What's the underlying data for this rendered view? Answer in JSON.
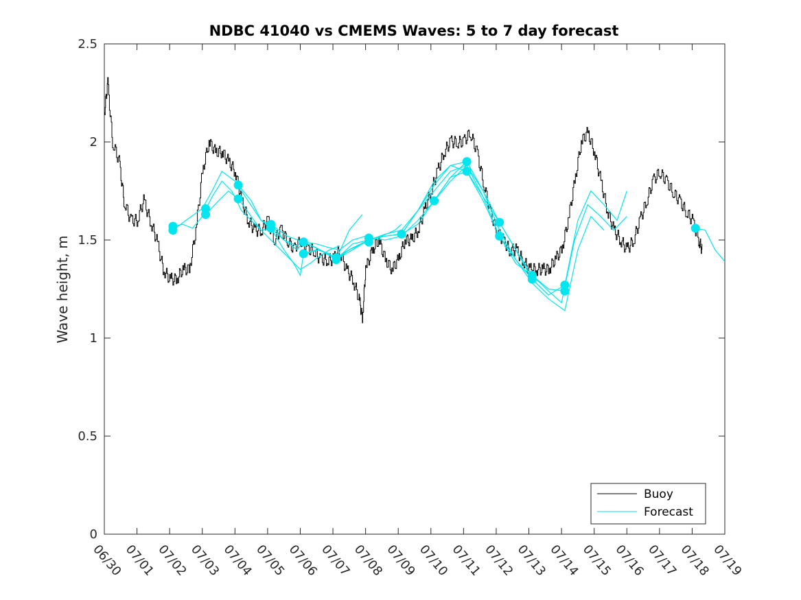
{
  "chart_data": {
    "type": "line",
    "title": "NDBC 41040 vs CMEMS Waves: 5 to 7 day forecast",
    "xlabel": "",
    "ylabel": "Wave height, m",
    "x_tick_labels": [
      "06/30",
      "07/01",
      "07/02",
      "07/03",
      "07/04",
      "07/05",
      "07/06",
      "07/07",
      "07/08",
      "07/09",
      "07/10",
      "07/11",
      "07/12",
      "07/13",
      "07/14",
      "07/15",
      "07/16",
      "07/17",
      "07/18",
      "07/19"
    ],
    "y_ticks": [
      0,
      0.5,
      1,
      1.5,
      2,
      2.5
    ],
    "y_tick_labels": [
      "0",
      "0.5",
      "1",
      "1.5",
      "2",
      "2.5"
    ],
    "xlim_days": [
      0,
      19
    ],
    "ylim": [
      0,
      2.5
    ],
    "grid": false,
    "legend_position": "bottom-right",
    "colors": {
      "buoy": "#000000",
      "forecast": "#00e5ee",
      "axes": "#262626"
    },
    "legend": [
      {
        "name": "Buoy",
        "color": "#000000"
      },
      {
        "name": "Forecast",
        "color": "#00e5ee"
      }
    ],
    "buoy": {
      "name": "Buoy",
      "days": [
        0.0,
        0.1,
        0.25,
        0.45,
        0.6,
        0.8,
        1.0,
        1.2,
        1.4,
        1.6,
        1.8,
        2.0,
        2.2,
        2.4,
        2.6,
        2.8,
        3.0,
        3.2,
        3.4,
        3.6,
        3.8,
        4.0,
        4.2,
        4.4,
        4.6,
        4.8,
        5.0,
        5.2,
        5.4,
        5.6,
        5.8,
        6.0,
        6.2,
        6.4,
        6.6,
        6.8,
        7.0,
        7.2,
        7.4,
        7.6,
        7.8,
        7.9,
        8.0,
        8.2,
        8.4,
        8.6,
        8.8,
        9.0,
        9.2,
        9.4,
        9.6,
        9.8,
        10.0,
        10.2,
        10.4,
        10.6,
        10.8,
        11.0,
        11.2,
        11.4,
        11.6,
        11.8,
        12.0,
        12.2,
        12.4,
        12.6,
        12.8,
        13.0,
        13.2,
        13.4,
        13.6,
        13.8,
        14.0,
        14.2,
        14.4,
        14.6,
        14.8,
        15.0,
        15.2,
        15.4,
        15.6,
        15.8,
        16.0,
        16.2,
        16.4,
        16.6,
        16.8,
        17.0,
        17.2,
        17.4,
        17.6,
        17.8,
        18.0,
        18.2,
        18.3
      ],
      "values": [
        2.15,
        2.3,
        2.0,
        1.9,
        1.7,
        1.6,
        1.6,
        1.7,
        1.6,
        1.5,
        1.35,
        1.3,
        1.3,
        1.35,
        1.35,
        1.55,
        1.85,
        2.0,
        1.95,
        1.95,
        1.9,
        1.85,
        1.7,
        1.6,
        1.55,
        1.55,
        1.6,
        1.5,
        1.55,
        1.5,
        1.45,
        1.5,
        1.45,
        1.45,
        1.4,
        1.4,
        1.4,
        1.45,
        1.35,
        1.3,
        1.2,
        1.1,
        1.35,
        1.45,
        1.5,
        1.4,
        1.35,
        1.4,
        1.5,
        1.5,
        1.55,
        1.65,
        1.75,
        1.85,
        1.95,
        2.0,
        2.0,
        2.0,
        2.05,
        1.95,
        1.8,
        1.65,
        1.55,
        1.5,
        1.45,
        1.45,
        1.4,
        1.35,
        1.35,
        1.35,
        1.35,
        1.4,
        1.45,
        1.6,
        1.8,
        2.0,
        2.05,
        1.95,
        1.8,
        1.65,
        1.55,
        1.5,
        1.45,
        1.5,
        1.6,
        1.7,
        1.8,
        1.85,
        1.8,
        1.75,
        1.7,
        1.65,
        1.6,
        1.5,
        1.45
      ]
    },
    "forecast_runs": [
      {
        "days": [
          2.1,
          2.4,
          2.7,
          3.0,
          3.3,
          3.6,
          3.9,
          4.2,
          4.5,
          4.8,
          5.1,
          5.4,
          5.7,
          6.0,
          6.3,
          6.6,
          6.9,
          7.2
        ],
        "values": [
          1.57,
          1.58,
          1.56,
          1.62,
          1.72,
          1.8,
          1.75,
          1.65,
          1.6,
          1.55,
          1.5,
          1.45,
          1.4,
          1.35,
          1.38,
          1.42,
          1.45,
          1.47
        ]
      },
      {
        "days": [
          2.1,
          2.5,
          3.0,
          3.3,
          3.6,
          4.0,
          4.4,
          4.8,
          5.1,
          5.5,
          5.9,
          6.1,
          6.5,
          6.9,
          7.2,
          7.6,
          8.0
        ],
        "values": [
          1.55,
          1.6,
          1.66,
          1.75,
          1.85,
          1.8,
          1.7,
          1.6,
          1.58,
          1.5,
          1.45,
          1.49,
          1.48,
          1.46,
          1.45,
          1.5,
          1.52
        ]
      },
      {
        "days": [
          3.1,
          3.5,
          3.8,
          4.1,
          4.5,
          4.8,
          5.1,
          5.5,
          5.8,
          6.0,
          6.1,
          6.5,
          6.9,
          7.1,
          7.5,
          7.9
        ],
        "values": [
          1.63,
          1.7,
          1.75,
          1.71,
          1.62,
          1.55,
          1.56,
          1.45,
          1.38,
          1.32,
          1.43,
          1.45,
          1.43,
          1.4,
          1.55,
          1.63
        ]
      },
      {
        "days": [
          4.1,
          4.5,
          4.8,
          5.1,
          5.5,
          5.9,
          6.1,
          6.5,
          6.9,
          7.1,
          7.5,
          7.9,
          8.1,
          8.5,
          8.9,
          9.1
        ],
        "values": [
          1.78,
          1.7,
          1.6,
          1.56,
          1.5,
          1.47,
          1.49,
          1.46,
          1.42,
          1.4,
          1.45,
          1.48,
          1.5,
          1.52,
          1.55,
          1.58
        ]
      },
      {
        "days": [
          5.1,
          5.6,
          6.1,
          6.6,
          7.1,
          7.6,
          8.1,
          8.6,
          9.1,
          9.6,
          10.1,
          10.6,
          11.1
        ],
        "values": [
          1.58,
          1.52,
          1.49,
          1.45,
          1.4,
          1.48,
          1.5,
          1.52,
          1.53,
          1.58,
          1.7,
          1.82,
          1.9
        ]
      },
      {
        "days": [
          6.1,
          6.6,
          7.1,
          7.6,
          8.1,
          8.6,
          9.1,
          9.6,
          10.1,
          10.6,
          11.1,
          11.6,
          12.1,
          12.6,
          13.1
        ],
        "values": [
          1.43,
          1.45,
          1.41,
          1.46,
          1.5,
          1.53,
          1.55,
          1.65,
          1.78,
          1.88,
          1.9,
          1.75,
          1.55,
          1.4,
          1.3
        ]
      },
      {
        "days": [
          7.1,
          7.6,
          8.1,
          8.6,
          9.1,
          9.6,
          10.1,
          10.6,
          11.1,
          11.6,
          12.1,
          12.6,
          13.1,
          13.6,
          14.1
        ],
        "values": [
          1.4,
          1.45,
          1.5,
          1.52,
          1.53,
          1.65,
          1.8,
          1.88,
          1.85,
          1.72,
          1.52,
          1.38,
          1.32,
          1.25,
          1.24
        ]
      },
      {
        "days": [
          8.1,
          8.6,
          9.1,
          9.6,
          10.1,
          10.6,
          11.1,
          11.6,
          12.1,
          12.6,
          13.1,
          13.6,
          14.1,
          14.5,
          14.9,
          15.3,
          15.7,
          16.0
        ],
        "values": [
          1.51,
          1.5,
          1.52,
          1.6,
          1.7,
          1.8,
          1.88,
          1.72,
          1.59,
          1.45,
          1.3,
          1.22,
          1.27,
          1.6,
          1.75,
          1.68,
          1.6,
          1.75
        ]
      },
      {
        "days": [
          9.1,
          9.6,
          10.1,
          10.6,
          11.1,
          11.6,
          12.1,
          12.6,
          13.1,
          13.6,
          14.0,
          14.4,
          14.8,
          15.2,
          15.6,
          16.0
        ],
        "values": [
          1.53,
          1.65,
          1.75,
          1.85,
          1.88,
          1.75,
          1.59,
          1.45,
          1.32,
          1.24,
          1.18,
          1.5,
          1.68,
          1.62,
          1.55,
          1.62
        ]
      },
      {
        "days": [
          10.1,
          10.6,
          11.1,
          11.6,
          12.1,
          12.6,
          13.1,
          13.6,
          14.1,
          14.5,
          14.9,
          15.3
        ],
        "values": [
          1.7,
          1.82,
          1.85,
          1.7,
          1.52,
          1.4,
          1.28,
          1.2,
          1.14,
          1.45,
          1.62,
          1.55
        ]
      },
      {
        "days": [
          18.1,
          18.4,
          18.7,
          19.0
        ],
        "values": [
          1.56,
          1.55,
          1.45,
          1.39
        ]
      }
    ],
    "forecast_markers": {
      "days": [
        2.1,
        2.1,
        3.1,
        3.1,
        4.1,
        4.1,
        5.1,
        5.1,
        6.1,
        6.1,
        7.1,
        7.1,
        8.1,
        8.1,
        9.1,
        10.1,
        11.1,
        11.1,
        12.1,
        12.1,
        13.1,
        13.1,
        14.1,
        14.1,
        18.1
      ],
      "values": [
        1.57,
        1.55,
        1.66,
        1.63,
        1.78,
        1.71,
        1.58,
        1.56,
        1.49,
        1.43,
        1.41,
        1.4,
        1.51,
        1.49,
        1.53,
        1.7,
        1.9,
        1.85,
        1.59,
        1.52,
        1.32,
        1.3,
        1.27,
        1.24,
        1.56
      ]
    }
  }
}
